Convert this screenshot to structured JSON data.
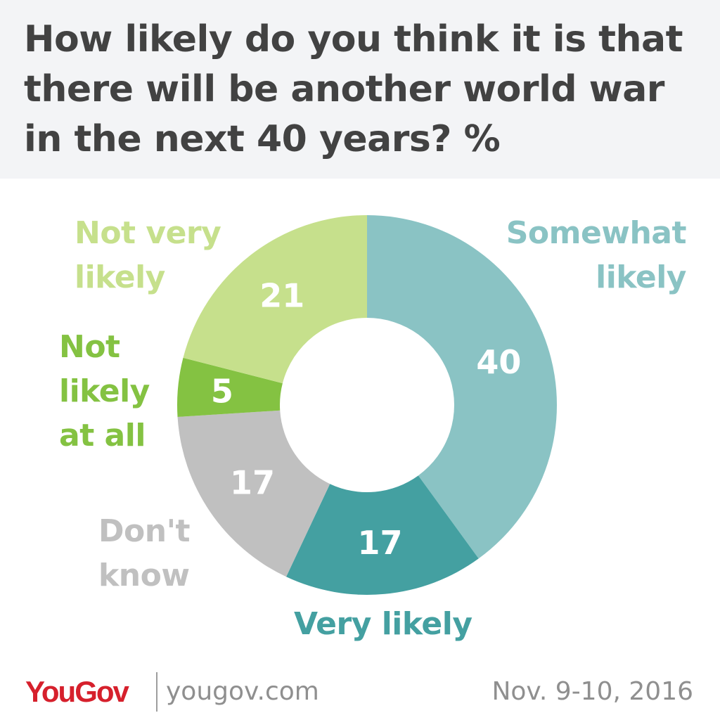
{
  "title_lines": [
    "How likely do you think it is that",
    "there will be another world war",
    "in the next 40 years? %"
  ],
  "chart_data": {
    "type": "pie",
    "variant": "donut",
    "title": "How likely do you think it is that there will be another world war in the next 40 years? %",
    "unit": "%",
    "slices": [
      {
        "label": "Somewhat likely",
        "value": 40,
        "color": "#8ac3c4"
      },
      {
        "label": "Very likely",
        "value": 17,
        "color": "#44a0a1"
      },
      {
        "label": "Don't know",
        "value": 17,
        "color": "#c0c0c0"
      },
      {
        "label": "Not likely at all",
        "value": 5,
        "color": "#84c242"
      },
      {
        "label": "Not very likely",
        "value": 21,
        "color": "#c6e08c"
      }
    ],
    "legend_placement": "labels around the donut"
  },
  "legend": {
    "somewhat_likely": {
      "lines": [
        "Somewhat",
        "likely"
      ],
      "color": "#8ac3c4"
    },
    "very_likely": {
      "lines": [
        "Very likely"
      ],
      "color": "#44a0a1"
    },
    "dont_know": {
      "lines": [
        "Don't",
        "know"
      ],
      "color": "#c0c0c0"
    },
    "not_likely_at_all": {
      "lines": [
        "Not",
        "likely",
        "at all"
      ],
      "color": "#84c242"
    },
    "not_very_likely": {
      "lines": [
        "Not very",
        "likely"
      ],
      "color": "#c6e08c"
    }
  },
  "footer": {
    "brand": "YouGov",
    "site": "yougov.com",
    "date": "Nov. 9-10, 2016",
    "brand_color": "#d6202c"
  },
  "colors": {
    "header_bg": "#f3f4f6",
    "title_text": "#424242",
    "footer_text": "#8f8f8f",
    "data_label": "#ffffff"
  }
}
